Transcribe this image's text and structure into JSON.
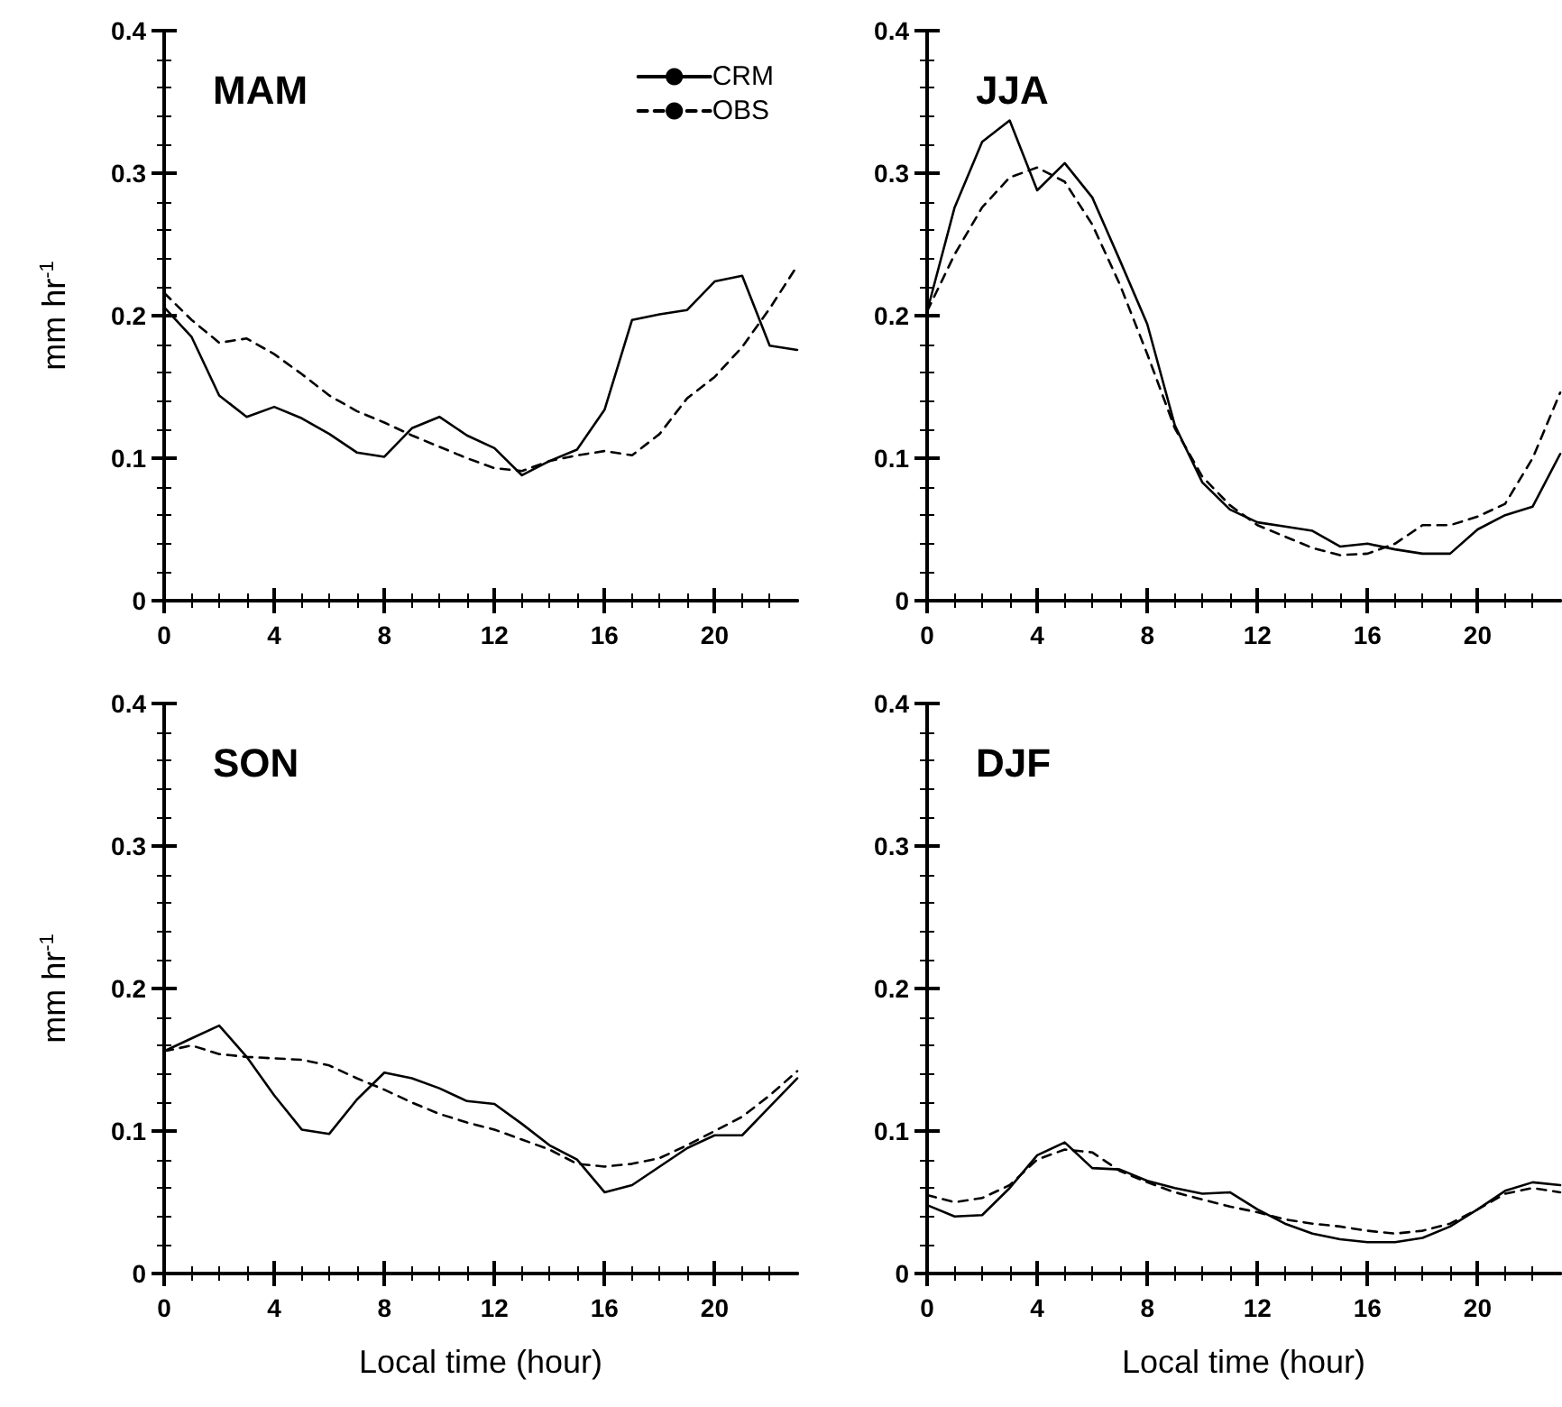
{
  "chart_data": [
    {
      "type": "line",
      "title": "MAM",
      "ylabel": "mm hr$^{-1}$",
      "x": [
        0,
        1,
        2,
        3,
        4,
        5,
        6,
        7,
        8,
        9,
        10,
        11,
        12,
        13,
        14,
        15,
        16,
        17,
        18,
        19,
        20,
        21,
        22,
        23
      ],
      "xlim": [
        0,
        23
      ],
      "xticks": [
        0,
        4,
        8,
        12,
        16,
        20
      ],
      "ylim": [
        0,
        0.4
      ],
      "yticks": [
        0,
        0.1,
        0.2,
        0.3,
        0.4
      ],
      "legend": "top right",
      "grid": false,
      "marker": "none",
      "series": [
        {
          "name": "CRM",
          "color": "#000000",
          "line_style": "solid",
          "values": [
            0.206,
            0.185,
            0.144,
            0.129,
            0.136,
            0.128,
            0.117,
            0.104,
            0.101,
            0.121,
            0.129,
            0.116,
            0.107,
            0.088,
            0.098,
            0.106,
            0.134,
            0.197,
            0.201,
            0.204,
            0.224,
            0.228,
            0.179,
            0.176
          ]
        },
        {
          "name": "OBS",
          "color": "#000000",
          "line_style": "dashed",
          "values": [
            0.216,
            0.197,
            0.181,
            0.184,
            0.173,
            0.159,
            0.144,
            0.133,
            0.125,
            0.116,
            0.108,
            0.1,
            0.093,
            0.091,
            0.098,
            0.102,
            0.105,
            0.102,
            0.117,
            0.142,
            0.157,
            0.178,
            0.205,
            0.235
          ]
        }
      ]
    },
    {
      "type": "line",
      "title": "JJA",
      "x": [
        0,
        1,
        2,
        3,
        4,
        5,
        6,
        7,
        8,
        9,
        10,
        11,
        12,
        13,
        14,
        15,
        16,
        17,
        18,
        19,
        20,
        21,
        22,
        23
      ],
      "xlim": [
        0,
        23
      ],
      "xticks": [
        0,
        4,
        8,
        12,
        16,
        20
      ],
      "ylim": [
        0,
        0.4
      ],
      "yticks": [
        0,
        0.1,
        0.2,
        0.3,
        0.4
      ],
      "legend": false,
      "grid": false,
      "marker": "none",
      "series": [
        {
          "color": "#000000",
          "line_style": "solid",
          "values": [
            0.203,
            0.276,
            0.322,
            0.337,
            0.288,
            0.307,
            0.283,
            0.239,
            0.194,
            0.123,
            0.083,
            0.064,
            0.055,
            0.052,
            0.049,
            0.038,
            0.04,
            0.036,
            0.033,
            0.033,
            0.05,
            0.06,
            0.066,
            0.103
          ]
        },
        {
          "color": "#000000",
          "line_style": "dashed",
          "values": [
            0.203,
            0.243,
            0.276,
            0.297,
            0.304,
            0.294,
            0.264,
            0.222,
            0.173,
            0.121,
            0.087,
            0.067,
            0.053,
            0.045,
            0.037,
            0.032,
            0.033,
            0.04,
            0.053,
            0.053,
            0.059,
            0.068,
            0.1,
            0.146
          ]
        }
      ]
    },
    {
      "type": "line",
      "title": "SON",
      "ylabel": "mm hr$^{-1}$",
      "xlabel": "Local time (hour)",
      "x": [
        0,
        1,
        2,
        3,
        4,
        5,
        6,
        7,
        8,
        9,
        10,
        11,
        12,
        13,
        14,
        15,
        16,
        17,
        18,
        19,
        20,
        21,
        22,
        23
      ],
      "xlim": [
        0,
        23
      ],
      "xticks": [
        0,
        4,
        8,
        12,
        16,
        20
      ],
      "ylim": [
        0,
        0.4
      ],
      "yticks": [
        0,
        0.1,
        0.2,
        0.3,
        0.4
      ],
      "legend": false,
      "grid": false,
      "marker": "none",
      "series": [
        {
          "color": "#000000",
          "line_style": "solid",
          "values": [
            0.156,
            0.165,
            0.174,
            0.152,
            0.125,
            0.101,
            0.098,
            0.122,
            0.141,
            0.137,
            0.13,
            0.121,
            0.119,
            0.105,
            0.09,
            0.08,
            0.057,
            0.062,
            0.075,
            0.088,
            0.097,
            0.097,
            0.117,
            0.137
          ]
        },
        {
          "color": "#000000",
          "line_style": "dashed",
          "values": [
            0.156,
            0.16,
            0.154,
            0.152,
            0.151,
            0.15,
            0.146,
            0.137,
            0.129,
            0.12,
            0.112,
            0.106,
            0.101,
            0.094,
            0.087,
            0.077,
            0.075,
            0.077,
            0.081,
            0.09,
            0.1,
            0.11,
            0.125,
            0.142
          ]
        }
      ]
    },
    {
      "type": "line",
      "title": "DJF",
      "xlabel": "Local time (hour)",
      "x": [
        0,
        1,
        2,
        3,
        4,
        5,
        6,
        7,
        8,
        9,
        10,
        11,
        12,
        13,
        14,
        15,
        16,
        17,
        18,
        19,
        20,
        21,
        22,
        23
      ],
      "xlim": [
        0,
        23
      ],
      "xticks": [
        0,
        4,
        8,
        12,
        16,
        20
      ],
      "ylim": [
        0,
        0.4
      ],
      "yticks": [
        0,
        0.1,
        0.2,
        0.3,
        0.4
      ],
      "legend": false,
      "grid": false,
      "marker": "none",
      "series": [
        {
          "color": "#000000",
          "line_style": "solid",
          "values": [
            0.048,
            0.04,
            0.041,
            0.06,
            0.083,
            0.092,
            0.074,
            0.073,
            0.065,
            0.06,
            0.056,
            0.057,
            0.045,
            0.035,
            0.028,
            0.024,
            0.022,
            0.022,
            0.025,
            0.033,
            0.045,
            0.058,
            0.064,
            0.062
          ]
        },
        {
          "color": "#000000",
          "line_style": "dashed",
          "values": [
            0.055,
            0.05,
            0.053,
            0.062,
            0.08,
            0.087,
            0.085,
            0.072,
            0.064,
            0.057,
            0.052,
            0.047,
            0.043,
            0.038,
            0.035,
            0.033,
            0.03,
            0.028,
            0.03,
            0.035,
            0.045,
            0.056,
            0.06,
            0.057
          ]
        }
      ]
    }
  ]
}
